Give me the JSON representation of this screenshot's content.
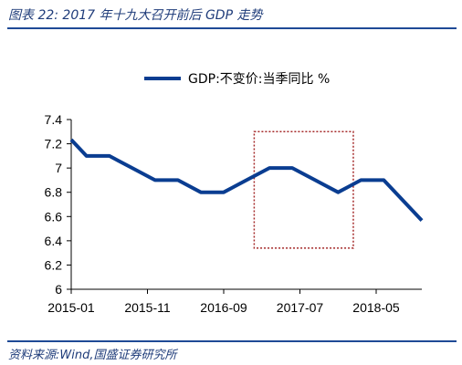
{
  "figure": {
    "title": "图表 22:  2017 年十九大召开前后 GDP 走势",
    "source": "资料来源:Wind,国盛证券研究所"
  },
  "colors": {
    "series": "#0a3d91",
    "highlight_box": "#a52a2a",
    "rule": "#1f4a96"
  },
  "chart_data": {
    "type": "line",
    "title": "",
    "xlabel": "",
    "ylabel": "",
    "legend_position": "top-center",
    "grid": false,
    "ylim": [
      6,
      7.4
    ],
    "y_ticks": [
      "6",
      "6.2",
      "6.4",
      "6.6",
      "6.8",
      "7",
      "7.2",
      "7.4"
    ],
    "x_tick_labels": [
      "2015-01",
      "2015-11",
      "2016-09",
      "2017-07",
      "2018-05"
    ],
    "x": [
      "2014-12",
      "2015-03",
      "2015-06",
      "2015-09",
      "2015-12",
      "2016-03",
      "2016-06",
      "2016-09",
      "2016-12",
      "2017-03",
      "2017-06",
      "2017-09",
      "2017-12",
      "2018-03",
      "2018-06",
      "2018-09",
      "2018-12"
    ],
    "series": [
      {
        "name": "GDP:不变价:当季同比 %",
        "values": [
          7.3,
          7.1,
          7.1,
          7.0,
          6.9,
          6.9,
          6.8,
          6.8,
          6.9,
          7.0,
          7.0,
          6.9,
          6.8,
          6.9,
          6.9,
          6.7,
          6.5
        ]
      }
    ],
    "annotation": {
      "type": "highlight-box",
      "x_range": [
        "2017-01",
        "2018-02"
      ],
      "y_range": [
        6.34,
        7.3
      ]
    }
  }
}
